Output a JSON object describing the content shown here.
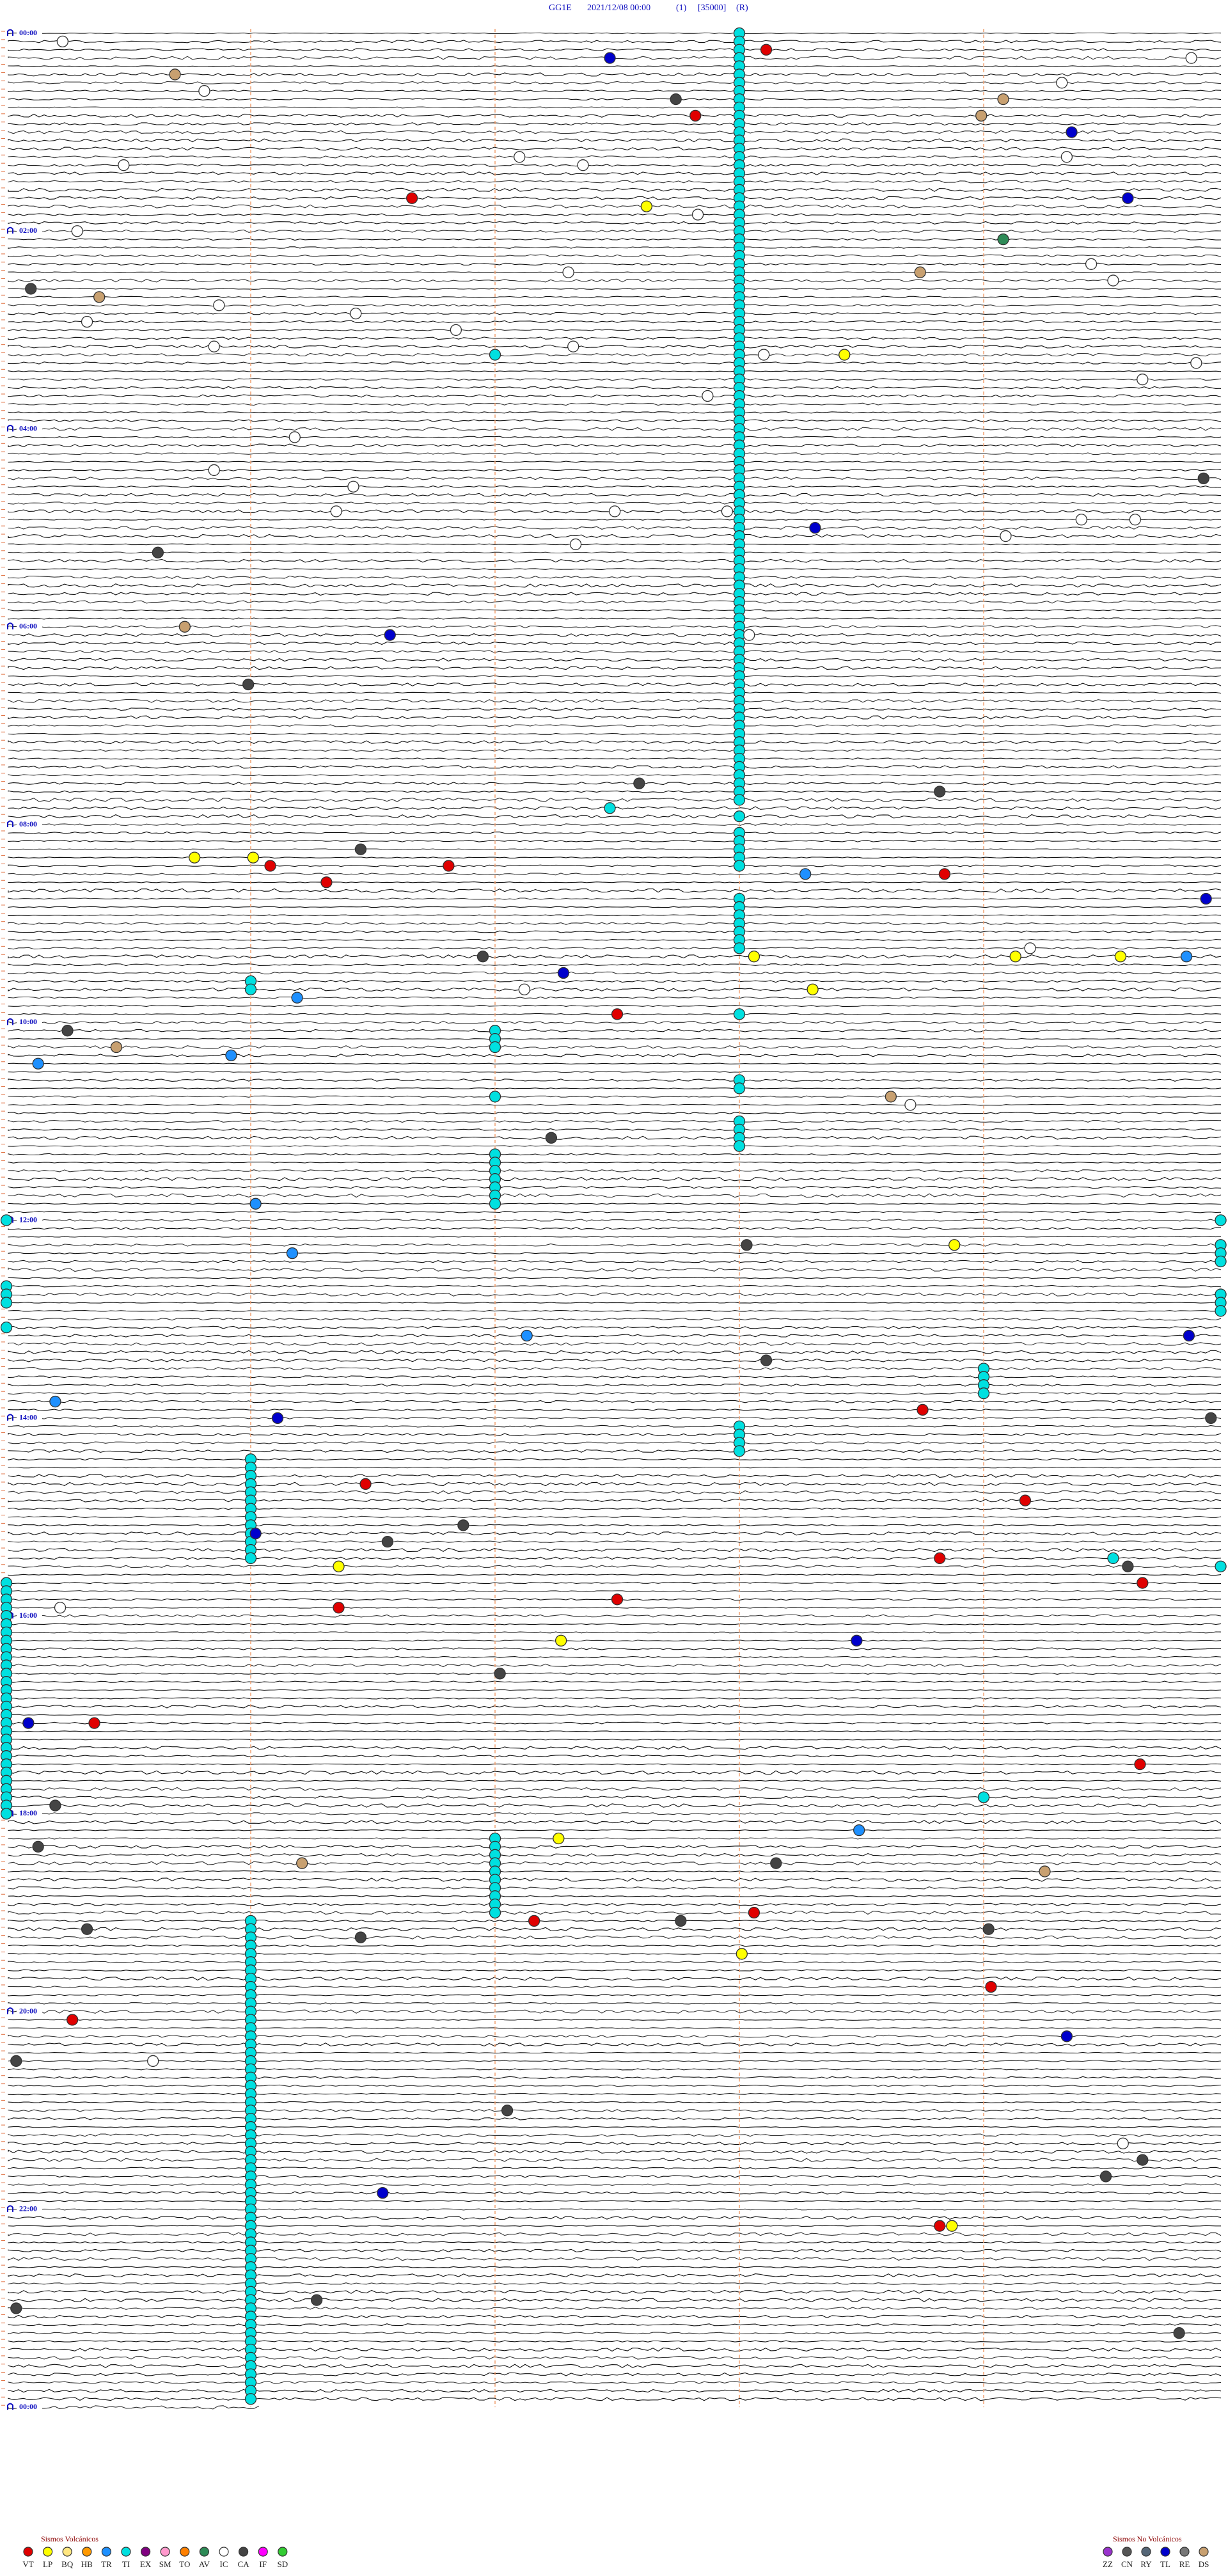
{
  "header": {
    "station": "GG1E",
    "datetime": "2021/12/08 00:00",
    "channel": "(1)",
    "scale": "[35000]",
    "mode": "(R)"
  },
  "time_labels": [
    "00:00",
    "02:00",
    "04:00",
    "06:00",
    "08:00",
    "10:00",
    "12:00",
    "14:00",
    "16:00",
    "18:00",
    "20:00",
    "22:00",
    "00:00"
  ],
  "legend": {
    "volcanic": {
      "title": "Sismos Volcánicos",
      "items": [
        {
          "code": "VT",
          "color": "#e00000"
        },
        {
          "code": "LP",
          "color": "#ffff00"
        },
        {
          "code": "BQ",
          "color": "#ffe680"
        },
        {
          "code": "HB",
          "color": "#ff9900"
        },
        {
          "code": "TR",
          "color": "#1e90ff"
        },
        {
          "code": "TI",
          "color": "#00e0e0"
        },
        {
          "code": "EX",
          "color": "#800080"
        },
        {
          "code": "SM",
          "color": "#ff99cc"
        },
        {
          "code": "TO",
          "color": "#ff8000"
        },
        {
          "code": "AV",
          "color": "#2e8b57"
        },
        {
          "code": "IC",
          "color": "#ffffff"
        },
        {
          "code": "CA",
          "color": "#444444"
        },
        {
          "code": "IF",
          "color": "#ff00ff"
        },
        {
          "code": "SD",
          "color": "#33cc33"
        }
      ]
    },
    "non_volcanic": {
      "title": "Sismos No Volcánicos",
      "items": [
        {
          "code": "ZZ",
          "color": "#9933cc"
        },
        {
          "code": "CN",
          "color": "#555555"
        },
        {
          "code": "RY",
          "color": "#556677"
        },
        {
          "code": "TL",
          "color": "#0000cc"
        },
        {
          "code": "RE",
          "color": "#777777"
        },
        {
          "code": "DS",
          "color": "#c8a070"
        }
      ]
    }
  },
  "events": [
    {
      "type": "VT",
      "points": [
        [
          2,
          3.11
        ],
        [
          10,
          2.82
        ],
        [
          20,
          1.66
        ],
        [
          101,
          1.08
        ],
        [
          103,
          1.31
        ],
        [
          101,
          1.81
        ],
        [
          102,
          3.84
        ],
        [
          119,
          2.5
        ],
        [
          167,
          3.75
        ],
        [
          176,
          1.47
        ],
        [
          178,
          4.17
        ],
        [
          185,
          3.82
        ],
        [
          188,
          4.65
        ],
        [
          191,
          1.36
        ],
        [
          190,
          2.5
        ],
        [
          205,
          0.36
        ],
        [
          210,
          4.64
        ],
        [
          229,
          2.16
        ],
        [
          228,
          3.06
        ],
        [
          237,
          4.03
        ],
        [
          241,
          0.27
        ],
        [
          266,
          3.82
        ]
      ]
    },
    {
      "type": "TL",
      "points": [
        [
          3,
          2.47
        ],
        [
          12,
          4.36
        ],
        [
          20,
          4.59
        ],
        [
          60,
          3.31
        ],
        [
          73,
          1.57
        ],
        [
          105,
          4.91
        ],
        [
          114,
          2.28
        ],
        [
          168,
          1.11
        ],
        [
          182,
          1.02
        ],
        [
          205,
          0.09
        ],
        [
          262,
          1.54
        ],
        [
          158,
          4.84
        ],
        [
          243,
          4.34
        ],
        [
          195,
          3.48
        ]
      ]
    },
    {
      "type": "TR",
      "points": [
        [
          102,
          3.27
        ],
        [
          117,
          1.19
        ],
        [
          112,
          4.83
        ],
        [
          124,
          0.92
        ],
        [
          125,
          0.13
        ],
        [
          142,
          1.02
        ],
        [
          148,
          1.17
        ],
        [
          158,
          2.13
        ],
        [
          166,
          0.2
        ],
        [
          218,
          3.49
        ]
      ]
    },
    {
      "type": "LP",
      "points": [
        [
          21,
          2.62
        ],
        [
          39,
          3.43
        ],
        [
          100,
          0.77
        ],
        [
          100,
          1.01
        ],
        [
          112,
          3.06
        ],
        [
          116,
          3.3
        ],
        [
          112,
          4.13
        ],
        [
          112,
          4.56
        ],
        [
          147,
          3.88
        ],
        [
          186,
          1.36
        ],
        [
          195,
          2.27
        ],
        [
          219,
          2.26
        ],
        [
          233,
          3.01
        ],
        [
          266,
          3.87
        ]
      ]
    },
    {
      "type": "IC",
      "points": [
        [
          1,
          0.23
        ],
        [
          7,
          0.81
        ],
        [
          6,
          4.32
        ],
        [
          3,
          4.85
        ],
        [
          15,
          2.1
        ],
        [
          16,
          2.36
        ],
        [
          16,
          0.48
        ],
        [
          22,
          2.83
        ],
        [
          24,
          0.29
        ],
        [
          15,
          4.34
        ],
        [
          28,
          4.44
        ],
        [
          29,
          2.3
        ],
        [
          30,
          4.53
        ],
        [
          33,
          0.87
        ],
        [
          34,
          1.43
        ],
        [
          35,
          0.33
        ],
        [
          36,
          1.84
        ],
        [
          38,
          0.85
        ],
        [
          38,
          2.32
        ],
        [
          39,
          3.1
        ],
        [
          40,
          4.87
        ],
        [
          42,
          4.65
        ],
        [
          44,
          2.87
        ],
        [
          49,
          1.18
        ],
        [
          53,
          0.85
        ],
        [
          55,
          1.42
        ],
        [
          58,
          2.49
        ],
        [
          58,
          1.35
        ],
        [
          59,
          4.4
        ],
        [
          59,
          4.62
        ],
        [
          61,
          4.09
        ],
        [
          62,
          2.33
        ],
        [
          58,
          2.95
        ],
        [
          73,
          3.04
        ],
        [
          111,
          4.19
        ],
        [
          116,
          2.12
        ],
        [
          130,
          3.7
        ],
        [
          191,
          0.22
        ],
        [
          246,
          0.6
        ],
        [
          256,
          4.57
        ]
      ]
    },
    {
      "type": "CA",
      "points": [
        [
          8,
          2.74
        ],
        [
          31,
          0.1
        ],
        [
          54,
          4.9
        ],
        [
          63,
          0.62
        ],
        [
          79,
          0.99
        ],
        [
          91,
          2.59
        ],
        [
          92,
          3.82
        ],
        [
          99,
          1.45
        ],
        [
          112,
          1.95
        ],
        [
          121,
          0.25
        ],
        [
          134,
          2.23
        ],
        [
          147,
          3.03
        ],
        [
          161,
          3.11
        ],
        [
          168,
          4.93
        ],
        [
          183,
          1.56
        ],
        [
          181,
          1.87
        ],
        [
          186,
          4.59
        ],
        [
          199,
          2.02
        ],
        [
          215,
          0.2
        ],
        [
          220,
          0.13
        ],
        [
          222,
          3.15
        ],
        [
          229,
          2.76
        ],
        [
          230,
          0.33
        ],
        [
          231,
          1.45
        ],
        [
          230,
          4.02
        ],
        [
          246,
          0.04
        ],
        [
          252,
          2.05
        ],
        [
          258,
          4.65
        ],
        [
          260,
          4.5
        ],
        [
          275,
          1.27
        ],
        [
          276,
          0.04
        ],
        [
          279,
          4.8
        ]
      ]
    },
    {
      "type": "DS",
      "points": [
        [
          5,
          0.69
        ],
        [
          8,
          4.08
        ],
        [
          10,
          3.99
        ],
        [
          29,
          3.74
        ],
        [
          32,
          0.38
        ],
        [
          72,
          0.73
        ],
        [
          123,
          0.45
        ],
        [
          129,
          3.62
        ],
        [
          222,
          1.21
        ],
        [
          223,
          4.25
        ]
      ]
    },
    {
      "type": "AV",
      "points": [
        [
          25,
          4.08
        ]
      ]
    },
    {
      "type": "TI",
      "points": [
        [
          94,
          2.47
        ],
        [
          185,
          4.53
        ]
      ]
    }
  ],
  "runs": [
    {
      "type": "TI",
      "minute": 3.0,
      "rows": [
        [
          0,
          93
        ],
        [
          95,
          95
        ],
        [
          97,
          101
        ],
        [
          105,
          111
        ],
        [
          119,
          119
        ],
        [
          127,
          128
        ],
        [
          132,
          135
        ],
        [
          169,
          172
        ]
      ]
    },
    {
      "type": "TI",
      "minute": 1.0,
      "rows": [
        [
          115,
          116
        ],
        [
          173,
          185
        ],
        [
          229,
          287
        ]
      ]
    },
    {
      "type": "TI",
      "minute": 2.0,
      "rows": [
        [
          39,
          39
        ],
        [
          121,
          123
        ],
        [
          129,
          129
        ],
        [
          136,
          142
        ],
        [
          219,
          228
        ]
      ]
    },
    {
      "type": "TI",
      "minute": 0.0,
      "rows": [
        [
          144,
          144
        ],
        [
          152,
          154
        ],
        [
          157,
          157
        ],
        [
          188,
          216
        ]
      ]
    },
    {
      "type": "TI",
      "minute": 4.97,
      "rows": [
        [
          144,
          144
        ],
        [
          147,
          149
        ],
        [
          153,
          155
        ],
        [
          186,
          186
        ]
      ]
    },
    {
      "type": "TI",
      "minute": 4.0,
      "rows": [
        [
          162,
          165
        ],
        [
          214,
          214
        ]
      ]
    }
  ]
}
